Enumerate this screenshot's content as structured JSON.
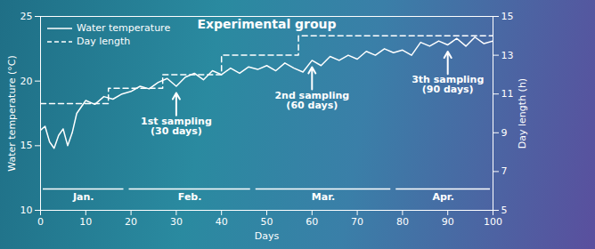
{
  "chart_data": {
    "type": "line",
    "title": "Experimental group",
    "x_label": "Days",
    "y_label": "Water temperature (°C)",
    "y2_label": "Day length (h)",
    "xlim": [
      0,
      100
    ],
    "xticks": [
      0,
      10,
      20,
      30,
      40,
      50,
      60,
      70,
      80,
      90,
      100
    ],
    "ylim": [
      10,
      25
    ],
    "yticks": [
      10,
      15,
      20,
      25
    ],
    "y2lim": [
      5,
      15
    ],
    "y2ticks": [
      5,
      7,
      9,
      11,
      13,
      15
    ],
    "grid": false,
    "legend": "top-left",
    "series": [
      {
        "name": "Water temperature",
        "color": "#ffffff",
        "line_style": "solid",
        "type": "line",
        "x": [
          0,
          1,
          2,
          3,
          4,
          5,
          6,
          7,
          8,
          9,
          10,
          12,
          14,
          16,
          18,
          20,
          22,
          24,
          26,
          28,
          30,
          32,
          34,
          36,
          38,
          40,
          42,
          44,
          46,
          48,
          50,
          52,
          54,
          56,
          58,
          60,
          62,
          64,
          66,
          68,
          70,
          72,
          74,
          76,
          78,
          80,
          82,
          84,
          86,
          88,
          90,
          92,
          94,
          96,
          98,
          100
        ],
        "values": [
          16.2,
          16.5,
          15.3,
          14.8,
          15.8,
          16.3,
          15.0,
          16.0,
          17.5,
          18.0,
          18.5,
          18.2,
          18.8,
          18.6,
          19.0,
          19.2,
          19.6,
          19.4,
          19.9,
          20.2,
          19.6,
          20.3,
          20.6,
          20.1,
          20.8,
          20.5,
          21.0,
          20.6,
          21.1,
          20.9,
          21.2,
          20.8,
          21.4,
          21.0,
          20.7,
          21.6,
          21.2,
          21.9,
          21.6,
          22.0,
          21.7,
          22.3,
          22.0,
          22.5,
          22.2,
          22.4,
          22.0,
          23.0,
          22.7,
          23.1,
          22.8,
          23.3,
          22.7,
          23.4,
          22.9,
          23.1
        ]
      },
      {
        "name": "Day length",
        "color": "#ffffff",
        "line_style": "dashed",
        "type": "step",
        "axis": "y2",
        "x": [
          0,
          15,
          27,
          40,
          57,
          100
        ],
        "values": [
          10.5,
          11.3,
          12,
          13,
          14,
          14
        ]
      }
    ],
    "annotations": [
      {
        "x": 30,
        "text": "1st sampling\n(30 days)"
      },
      {
        "x": 60,
        "text": "2nd sampling\n(60 days)"
      },
      {
        "x": 90,
        "text": "3th sampling\n(90 days)"
      }
    ],
    "months": [
      {
        "label": "Jan.",
        "start": 0,
        "end": 19
      },
      {
        "label": "Feb.",
        "start": 19,
        "end": 47
      },
      {
        "label": "Mar.",
        "start": 47,
        "end": 78
      },
      {
        "label": "Apr.",
        "start": 78,
        "end": 100
      }
    ]
  }
}
